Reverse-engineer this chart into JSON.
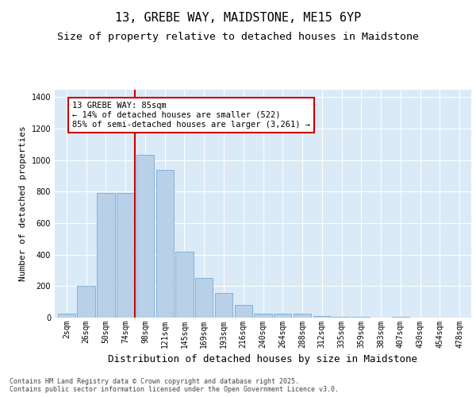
{
  "title": "13, GREBE WAY, MAIDSTONE, ME15 6YP",
  "subtitle": "Size of property relative to detached houses in Maidstone",
  "xlabel": "Distribution of detached houses by size in Maidstone",
  "ylabel": "Number of detached properties",
  "categories": [
    "2sqm",
    "26sqm",
    "50sqm",
    "74sqm",
    "98sqm",
    "121sqm",
    "145sqm",
    "169sqm",
    "193sqm",
    "216sqm",
    "240sqm",
    "264sqm",
    "288sqm",
    "312sqm",
    "335sqm",
    "359sqm",
    "383sqm",
    "407sqm",
    "430sqm",
    "454sqm",
    "478sqm"
  ],
  "values": [
    25,
    200,
    790,
    790,
    1035,
    940,
    420,
    250,
    155,
    80,
    25,
    25,
    25,
    10,
    5,
    5,
    0,
    5,
    0,
    0,
    0
  ],
  "bar_color": "#b8d0e8",
  "bar_edge_color": "#7aadd4",
  "background_color": "#daeaf7",
  "vline_color": "#cc0000",
  "annotation_text": "13 GREBE WAY: 85sqm\n← 14% of detached houses are smaller (522)\n85% of semi-detached houses are larger (3,261) →",
  "annotation_box_facecolor": "#ffffff",
  "annotation_box_edgecolor": "#cc0000",
  "vline_index": 3.46,
  "ylim": [
    0,
    1450
  ],
  "yticks": [
    0,
    200,
    400,
    600,
    800,
    1000,
    1200,
    1400
  ],
  "footer_text": "Contains HM Land Registry data © Crown copyright and database right 2025.\nContains public sector information licensed under the Open Government Licence v3.0.",
  "title_fontsize": 11,
  "subtitle_fontsize": 9.5,
  "ylabel_fontsize": 8,
  "xlabel_fontsize": 9,
  "tick_fontsize": 7,
  "annotation_fontsize": 7.5,
  "footer_fontsize": 6
}
